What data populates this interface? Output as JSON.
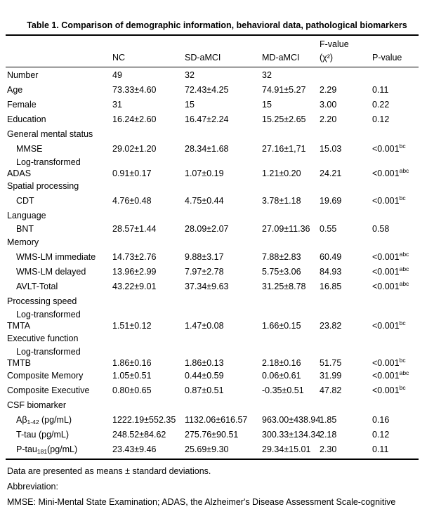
{
  "title": "Table 1. Comparison of demographic information, behavioral data, pathological biomarkers",
  "table": {
    "header": {
      "cols": [
        {
          "l1": "",
          "l2": "NC"
        },
        {
          "l1": "",
          "l2": "SD-aMCI"
        },
        {
          "l1": "",
          "l2": "MD-aMCI"
        },
        {
          "l1": "F-value",
          "l2": "(χ²)"
        },
        {
          "l1": "",
          "l2": "P-value"
        }
      ]
    },
    "rows": [
      {
        "label": "Number",
        "indent": 0,
        "values": [
          "49",
          "32",
          "32",
          "",
          ""
        ]
      },
      {
        "label": "Age",
        "indent": 0,
        "values": [
          "73.33±4.60",
          "72.43±4.25",
          "74.91±5.27",
          "2.29",
          "0.11"
        ]
      },
      {
        "label": "Female",
        "indent": 0,
        "values": [
          "31",
          "15",
          "15",
          "3.00",
          "0.22"
        ]
      },
      {
        "label": "Education",
        "indent": 0,
        "values": [
          "16.24±2.60",
          "16.47±2.24",
          "15.25±2.65",
          "2.20",
          "0.12"
        ]
      },
      {
        "label": "General mental status",
        "indent": 0,
        "values": [
          "",
          "",
          "",
          "",
          ""
        ]
      },
      {
        "label": "MMSE",
        "indent": 1,
        "values": [
          "29.02±1.20",
          "28.34±1.68",
          "27.16±1,71",
          "15.03",
          "<0.001"
        ],
        "p_sup": "bc"
      },
      {
        "label": "Log-transformed",
        "indent": 1,
        "h": "t1",
        "values": [
          "",
          "",
          "",
          "",
          ""
        ]
      },
      {
        "label": "ADAS",
        "indent": 0,
        "h": "t2",
        "values": [
          "0.91±0.17",
          "1.07±0.19",
          "1.21±0.20",
          "24.21",
          "<0.001"
        ],
        "p_sup": "abc"
      },
      {
        "label": "Spatial processing",
        "indent": 0,
        "values": [
          "",
          "",
          "",
          "",
          ""
        ]
      },
      {
        "label": "CDT",
        "indent": 1,
        "values": [
          "4.76±0.48",
          "4.75±0.44",
          "3.78±1.18",
          "19.69",
          "<0.001"
        ],
        "p_sup": "bc"
      },
      {
        "label": "Language",
        "indent": 0,
        "values": [
          "",
          "",
          "",
          "",
          ""
        ]
      },
      {
        "label": "BNT",
        "indent": 1,
        "h": "t1",
        "values": [
          "28.57±1.44",
          "28.09±2.07",
          "27.09±11.36",
          "0.55",
          "0.58"
        ]
      },
      {
        "label": "Memory",
        "indent": 0,
        "values": [
          "",
          "",
          "",
          "",
          ""
        ]
      },
      {
        "label": "WMS-LM immediate",
        "indent": 1,
        "values": [
          "14.73±2.76",
          "9.88±3.17",
          "7.88±2.83",
          "60.49",
          "<0.001"
        ],
        "p_sup": "abc"
      },
      {
        "label": "WMS-LM delayed",
        "indent": 1,
        "values": [
          "13.96±2.99",
          "7.97±2.78",
          "5.75±3.06",
          "84.93",
          "<0.001"
        ],
        "p_sup": "abc"
      },
      {
        "label": "AVLT-Total",
        "indent": 1,
        "values": [
          "43.22±9.01",
          "37.34±9.63",
          "31.25±8.78",
          "16.85",
          "<0.001"
        ],
        "p_sup": "abc"
      },
      {
        "label": "Processing speed",
        "indent": 0,
        "values": [
          "",
          "",
          "",
          "",
          ""
        ]
      },
      {
        "label": "Log-transformed",
        "indent": 1,
        "h": "t1",
        "values": [
          "",
          "",
          "",
          "",
          ""
        ]
      },
      {
        "label": "TMTA",
        "indent": 0,
        "h": "t2",
        "values": [
          "1.51±0.12",
          "1.47±0.08",
          "1.66±0.15",
          "23.82",
          "<0.001"
        ],
        "p_sup": "bc"
      },
      {
        "label": "Executive function",
        "indent": 0,
        "values": [
          "",
          "",
          "",
          "",
          ""
        ]
      },
      {
        "label": "Log-transformed",
        "indent": 1,
        "h": "t1",
        "values": [
          "",
          "",
          "",
          "",
          ""
        ]
      },
      {
        "label": "TMTB",
        "indent": 0,
        "h": "t2",
        "values": [
          "1.86±0.16",
          "1.86±0.13",
          "2.18±0.16",
          "51.75",
          "<0.001"
        ],
        "p_sup": "bc"
      },
      {
        "label": "Composite Memory",
        "indent": 0,
        "values": [
          "1.05±0.51",
          "0.44±0.59",
          "0.06±0.61",
          "31.99",
          "<0.001"
        ],
        "p_sup": "abc"
      },
      {
        "label": "Composite Executive",
        "indent": 0,
        "values": [
          "0.80±0.65",
          "0.87±0.51",
          "-0.35±0.51",
          "47.82",
          "<0.001"
        ],
        "p_sup": "bc"
      },
      {
        "label": "CSF biomarker",
        "indent": 0,
        "values": [
          "",
          "",
          "",
          "",
          ""
        ]
      },
      {
        "label_rich": [
          {
            "t": "Aβ"
          },
          {
            "t": "1-42",
            "sub": true
          },
          {
            "t": " (pg/mL)"
          }
        ],
        "indent": 1,
        "values": [
          "1222.19±552.35",
          "1132.06±616.57",
          "963.00±438.94",
          "1.85",
          "0.16"
        ]
      },
      {
        "label": "T-tau (pg/mL)",
        "indent": 1,
        "values": [
          "248.52±84.62",
          "275.76±90.51",
          "300.33±134.34",
          "2.18",
          "0.12"
        ]
      },
      {
        "label_rich": [
          {
            "t": "P-tau"
          },
          {
            "t": "181",
            "sub": true
          },
          {
            "t": "(pg/mL)"
          }
        ],
        "indent": 1,
        "values": [
          "23.43±9.46",
          "25.69±9.30",
          "29.34±15.01",
          "2.30",
          "0.11"
        ]
      }
    ]
  },
  "footnotes": {
    "line1": "Data are presented as means ± standard deviations.",
    "line2": "Abbreviation:",
    "line3": "MMSE: Mini-Mental State Examination; ADAS, the Alzheimer's Disease Assessment Scale-cognitive"
  },
  "colors": {
    "text": "#000000",
    "background": "#ffffff",
    "rule": "#000000"
  }
}
